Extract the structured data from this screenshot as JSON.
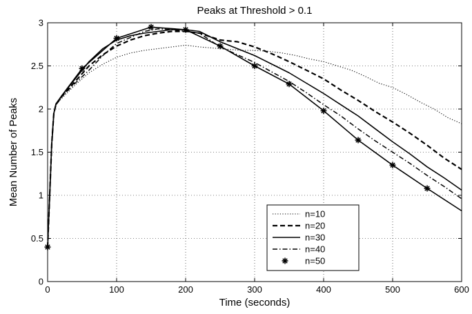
{
  "chart_data": {
    "type": "line",
    "title": "Peaks at Threshold > 0.1",
    "xlabel": "Time (seconds)",
    "ylabel": "Mean Number of Peaks",
    "xlim": [
      0,
      600
    ],
    "ylim": [
      0,
      3
    ],
    "xticks": [
      0,
      100,
      200,
      300,
      400,
      500,
      600
    ],
    "yticks": [
      0,
      0.5,
      1,
      1.5,
      2,
      2.5,
      3
    ],
    "xtick_labels": [
      "0",
      "100",
      "200",
      "300",
      "400",
      "500",
      "600"
    ],
    "ytick_labels": [
      "0",
      "0.5",
      "1",
      "1.5",
      "2",
      "2.5",
      "3"
    ],
    "grid": true,
    "grid_style": "dotted",
    "legend_position": "bottom-right",
    "series": [
      {
        "name": "n=10",
        "style": "dotted",
        "marker": "none",
        "color": "#000000",
        "x": [
          0,
          3,
          6,
          9,
          12,
          20,
          40,
          60,
          80,
          100,
          120,
          140,
          160,
          180,
          200,
          220,
          250,
          280,
          300,
          320,
          340,
          360,
          380,
          400,
          420,
          440,
          460,
          480,
          500,
          520,
          540,
          560,
          580,
          600
        ],
        "y": [
          0.4,
          1.0,
          1.6,
          1.95,
          2.05,
          2.12,
          2.28,
          2.42,
          2.52,
          2.6,
          2.65,
          2.68,
          2.7,
          2.72,
          2.74,
          2.72,
          2.7,
          2.68,
          2.68,
          2.67,
          2.65,
          2.62,
          2.58,
          2.55,
          2.5,
          2.45,
          2.38,
          2.3,
          2.25,
          2.17,
          2.08,
          2.0,
          1.9,
          1.83
        ]
      },
      {
        "name": "n=20",
        "style": "dashed",
        "marker": "none",
        "color": "#000000",
        "x": [
          0,
          3,
          6,
          9,
          12,
          20,
          40,
          60,
          80,
          100,
          120,
          140,
          160,
          180,
          200,
          220,
          250,
          275,
          300,
          325,
          350,
          375,
          400,
          425,
          450,
          475,
          500,
          525,
          550,
          575,
          600
        ],
        "y": [
          0.4,
          1.0,
          1.6,
          1.95,
          2.05,
          2.14,
          2.32,
          2.5,
          2.63,
          2.73,
          2.8,
          2.85,
          2.88,
          2.9,
          2.9,
          2.88,
          2.8,
          2.78,
          2.72,
          2.64,
          2.55,
          2.45,
          2.35,
          2.22,
          2.1,
          1.97,
          1.85,
          1.72,
          1.58,
          1.43,
          1.3
        ]
      },
      {
        "name": "n=30",
        "style": "solid",
        "marker": "none",
        "color": "#000000",
        "x": [
          0,
          3,
          6,
          9,
          12,
          20,
          40,
          60,
          80,
          100,
          120,
          140,
          160,
          180,
          200,
          220,
          250,
          275,
          300,
          325,
          350,
          375,
          400,
          425,
          450,
          475,
          500,
          525,
          550,
          575,
          600
        ],
        "y": [
          0.4,
          1.0,
          1.6,
          1.95,
          2.05,
          2.15,
          2.35,
          2.55,
          2.7,
          2.8,
          2.85,
          2.88,
          2.9,
          2.92,
          2.92,
          2.9,
          2.78,
          2.7,
          2.62,
          2.52,
          2.42,
          2.3,
          2.18,
          2.05,
          1.92,
          1.77,
          1.62,
          1.48,
          1.33,
          1.2,
          1.06
        ]
      },
      {
        "name": "n=40",
        "style": "dashdot",
        "marker": "none",
        "color": "#000000",
        "x": [
          0,
          3,
          6,
          9,
          12,
          20,
          40,
          60,
          80,
          100,
          120,
          140,
          160,
          180,
          200,
          220,
          250,
          275,
          300,
          325,
          350,
          375,
          400,
          425,
          450,
          475,
          500,
          525,
          550,
          575,
          600
        ],
        "y": [
          0.4,
          1.0,
          1.6,
          1.95,
          2.05,
          2.14,
          2.3,
          2.45,
          2.62,
          2.76,
          2.83,
          2.9,
          2.93,
          2.92,
          2.9,
          2.88,
          2.72,
          2.63,
          2.54,
          2.43,
          2.32,
          2.19,
          2.05,
          1.92,
          1.77,
          1.63,
          1.5,
          1.37,
          1.23,
          1.1,
          0.96
        ]
      },
      {
        "name": "n=50",
        "style": "solid",
        "marker": "asterisk",
        "color": "#000000",
        "x": [
          0,
          3,
          6,
          9,
          12,
          20,
          50,
          100,
          150,
          200,
          250,
          300,
          350,
          400,
          450,
          500,
          550,
          600
        ],
        "y": [
          0.4,
          1.0,
          1.6,
          1.95,
          2.06,
          2.15,
          2.47,
          2.82,
          2.95,
          2.92,
          2.73,
          2.5,
          2.29,
          1.98,
          1.64,
          1.35,
          1.08,
          0.82
        ],
        "marker_x": [
          0,
          50,
          100,
          150,
          200,
          250,
          300,
          350,
          400,
          450,
          500,
          550
        ],
        "marker_y": [
          0.4,
          2.47,
          2.82,
          2.95,
          2.92,
          2.73,
          2.5,
          2.29,
          1.98,
          1.64,
          1.35,
          1.08
        ]
      }
    ]
  }
}
